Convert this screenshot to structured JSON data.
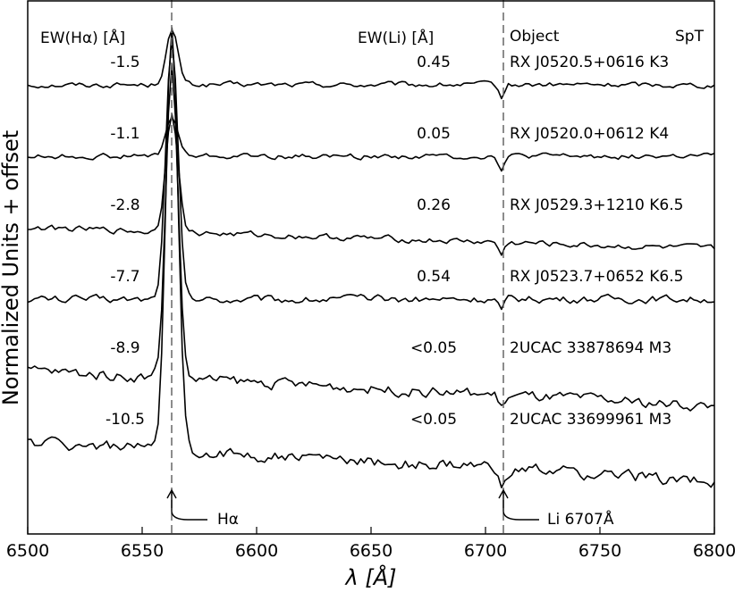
{
  "chart_data": {
    "type": "line",
    "xlabel": "λ [Å]",
    "ylabel": "Normalized Units + offset",
    "xlim": [
      6500,
      6800
    ],
    "xticks": [
      "6500",
      "6550",
      "6600",
      "6650",
      "6700",
      "6750",
      "6800"
    ],
    "grid": false,
    "headers": {
      "ew_ha": "EW(Hα) [Å]",
      "ew_li": "EW(Li) [Å]",
      "object": "Object",
      "spt": "SpT"
    },
    "annotations": {
      "ha_label": "Hα",
      "li_label": "Li 6707Å",
      "ha_wavelength": 6563,
      "li_wavelength": 6707
    },
    "series": [
      {
        "object": "RX J0520.5+0616",
        "spt": "K3",
        "ew_ha": "-1.5",
        "ew_li": "0.45",
        "offset": 5.0,
        "ha_peak": 0.75,
        "slope": 0.0,
        "noise": 0.07
      },
      {
        "object": "RX J0520.0+0612",
        "spt": "K4",
        "ew_ha": "-1.1",
        "ew_li": "0.05",
        "offset": 4.0,
        "ha_peak": 0.55,
        "slope": 0.0,
        "noise": 0.07
      },
      {
        "object": "RX J0529.3+1210",
        "spt": "K6.5",
        "ew_ha": "-2.8",
        "ew_li": "0.26",
        "offset": 3.0,
        "ha_peak": 1.7,
        "slope": -0.3,
        "noise": 0.08
      },
      {
        "object": "RX J0523.7+0652",
        "spt": "K6.5",
        "ew_ha": "-7.7",
        "ew_li": "0.54",
        "offset": 2.0,
        "ha_peak": 3.6,
        "slope": 0.0,
        "noise": 0.1
      },
      {
        "object": "2UCAC 33878694",
        "spt": "M3",
        "ew_ha": "-8.9",
        "ew_li": "<0.05",
        "offset": 1.0,
        "ha_peak": 4.4,
        "slope": -0.5,
        "noise": 0.14
      },
      {
        "object": "2UCAC 33699961",
        "spt": "M3",
        "ew_ha": "-10.5",
        "ew_li": "<0.05",
        "offset": 0.0,
        "ha_peak": 5.9,
        "slope": -0.55,
        "noise": 0.16
      }
    ]
  }
}
